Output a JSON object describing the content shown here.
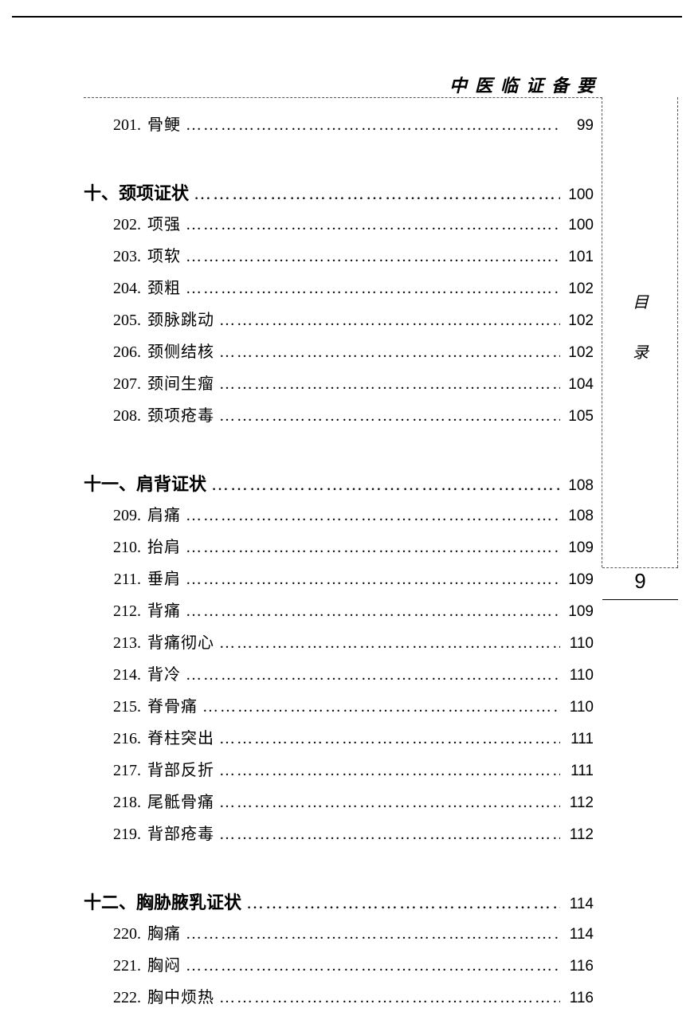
{
  "header": {
    "title": "中医临证备要"
  },
  "side": {
    "char1": "目",
    "char2": "录"
  },
  "page_number": "9",
  "leader_dots": "…………………………………………………………………",
  "toc": [
    {
      "type": "item",
      "num": "201.",
      "label": "骨鲠",
      "page": "99"
    },
    {
      "type": "section",
      "label": "十、颈项证状",
      "page": "100"
    },
    {
      "type": "item",
      "num": "202.",
      "label": "项强",
      "page": "100"
    },
    {
      "type": "item",
      "num": "203.",
      "label": "项软",
      "page": "101"
    },
    {
      "type": "item",
      "num": "204.",
      "label": "颈粗",
      "page": "102"
    },
    {
      "type": "item",
      "num": "205.",
      "label": "颈脉跳动",
      "page": "102"
    },
    {
      "type": "item",
      "num": "206.",
      "label": "颈侧结核",
      "page": "102"
    },
    {
      "type": "item",
      "num": "207.",
      "label": "颈间生瘤",
      "page": "104"
    },
    {
      "type": "item",
      "num": "208.",
      "label": "颈项疮毒",
      "page": "105"
    },
    {
      "type": "section",
      "label": "十一、肩背证状",
      "page": "108"
    },
    {
      "type": "item",
      "num": "209.",
      "label": "肩痛",
      "page": "108"
    },
    {
      "type": "item",
      "num": "210.",
      "label": "抬肩",
      "page": "109"
    },
    {
      "type": "item",
      "num": "211.",
      "label": "垂肩",
      "page": "109"
    },
    {
      "type": "item",
      "num": "212.",
      "label": "背痛",
      "page": "109"
    },
    {
      "type": "item",
      "num": "213.",
      "label": "背痛彻心",
      "page": "110"
    },
    {
      "type": "item",
      "num": "214.",
      "label": "背冷",
      "page": "110"
    },
    {
      "type": "item",
      "num": "215.",
      "label": "脊骨痛",
      "page": "110"
    },
    {
      "type": "item",
      "num": "216.",
      "label": "脊柱突出",
      "page": "111"
    },
    {
      "type": "item",
      "num": "217.",
      "label": "背部反折",
      "page": "111"
    },
    {
      "type": "item",
      "num": "218.",
      "label": "尾骶骨痛",
      "page": "112"
    },
    {
      "type": "item",
      "num": "219.",
      "label": "背部疮毒",
      "page": "112"
    },
    {
      "type": "section",
      "label": "十二、胸胁腋乳证状",
      "page": "114"
    },
    {
      "type": "item",
      "num": "220.",
      "label": "胸痛",
      "page": "114"
    },
    {
      "type": "item",
      "num": "221.",
      "label": "胸闷",
      "page": "116"
    },
    {
      "type": "item",
      "num": "222.",
      "label": "胸中烦热",
      "page": "116"
    }
  ]
}
